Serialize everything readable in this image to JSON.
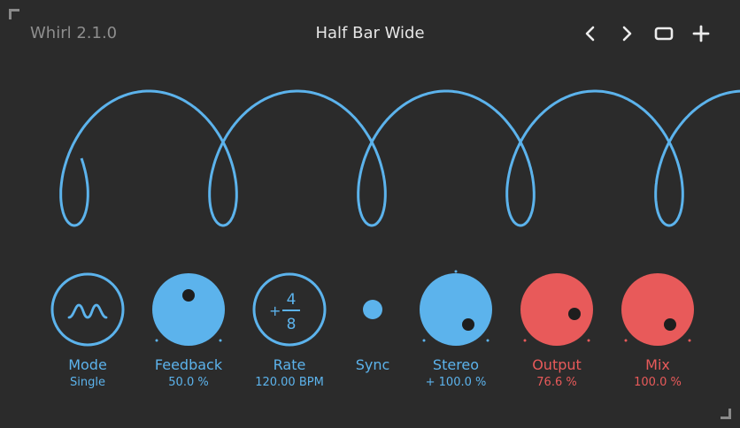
{
  "header": {
    "app_title": "Whirl 2.1.0",
    "preset_name": "Half Bar Wide"
  },
  "icons": {
    "prev": "chevron-left-icon",
    "next": "chevron-right-icon",
    "window": "window-icon",
    "add": "plus-icon"
  },
  "colors": {
    "background": "#2b2b2b",
    "accent_blue": "#5cb3ec",
    "accent_red": "#e85a5a"
  },
  "controls": {
    "mode": {
      "label": "Mode",
      "value": "Single"
    },
    "feedback": {
      "label": "Feedback",
      "value": "50.0 %"
    },
    "rate": {
      "label": "Rate",
      "value": "120.00 BPM",
      "sign": "+",
      "numerator": "4",
      "denominator": "8"
    },
    "sync": {
      "label": "Sync"
    },
    "stereo": {
      "label": "Stereo",
      "value": "+ 100.0 %"
    },
    "output": {
      "label": "Output",
      "value": "76.6 %"
    },
    "mix": {
      "label": "Mix",
      "value": "100.0 %"
    }
  }
}
